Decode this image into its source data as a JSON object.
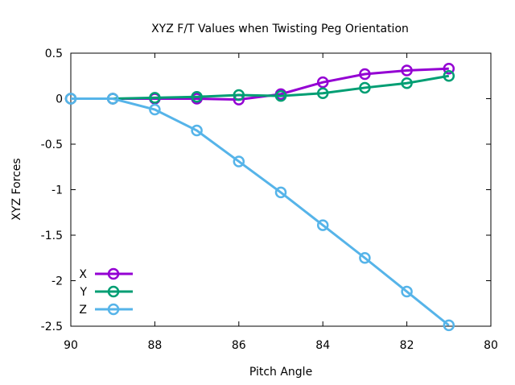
{
  "chart_data": {
    "type": "line",
    "title": "XYZ F/T Values when Twisting Peg Orientation",
    "xlabel": "Pitch Angle",
    "ylabel": "XYZ Forces",
    "xlim": [
      90,
      80
    ],
    "ylim": [
      -2.5,
      0.5
    ],
    "x_reversed": true,
    "x_ticks": [
      "90",
      "88",
      "86",
      "84",
      "82",
      "80"
    ],
    "y_ticks": [
      "0.5",
      "0",
      "-0.5",
      "-1",
      "-1.5",
      "-2",
      "-2.5"
    ],
    "x": [
      90,
      89,
      88,
      87,
      86,
      85,
      84,
      83,
      82,
      81
    ],
    "grid": false,
    "legend_position": "bottom-left",
    "series": [
      {
        "name": "X",
        "color": "#9400d3",
        "values": [
          0.0,
          0.0,
          0.0,
          0.0,
          -0.01,
          0.05,
          0.18,
          0.27,
          0.31,
          0.33
        ]
      },
      {
        "name": "Y",
        "color": "#009e73",
        "values": [
          0.0,
          0.0,
          0.01,
          0.02,
          0.04,
          0.03,
          0.06,
          0.12,
          0.17,
          0.25
        ]
      },
      {
        "name": "Z",
        "color": "#56b4e9",
        "values": [
          0.0,
          0.0,
          -0.12,
          -0.35,
          -0.69,
          -1.03,
          -1.39,
          -1.75,
          -2.12,
          -2.49
        ]
      }
    ]
  }
}
